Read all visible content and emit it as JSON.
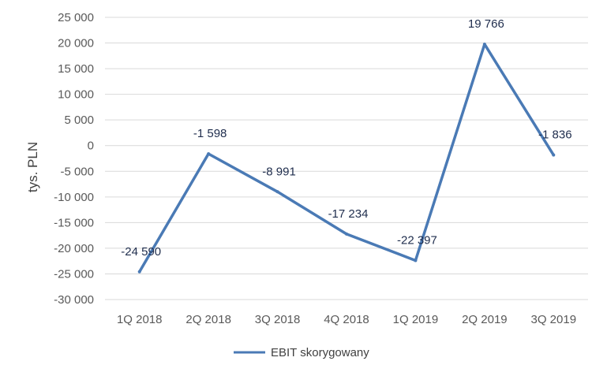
{
  "chart_data": {
    "type": "line",
    "categories": [
      "1Q 2018",
      "2Q 2018",
      "3Q 2018",
      "4Q 2018",
      "1Q 2019",
      "2Q 2019",
      "3Q 2019"
    ],
    "series": [
      {
        "name": "EBIT skorygowany",
        "values": [
          -24590,
          -1598,
          -8991,
          -17234,
          -22397,
          19766,
          -1836
        ],
        "labels": [
          "-24 590",
          "-1 598",
          "-8 991",
          "-17 234",
          "-22 397",
          "19 766",
          "-1 836"
        ],
        "color": "#4a7ab5"
      }
    ],
    "ylabel": "tys. PLN",
    "xlabel": "",
    "ylim": [
      -30000,
      25000
    ],
    "yticks": [
      25000,
      20000,
      15000,
      10000,
      5000,
      0,
      -5000,
      -10000,
      -15000,
      -20000,
      -25000,
      -30000
    ],
    "ytick_labels": [
      "25 000",
      "20 000",
      "15 000",
      "10 000",
      "5 000",
      "0",
      "-5 000",
      "-10 000",
      "-15 000",
      "-20 000",
      "-25 000",
      "-30 000"
    ],
    "grid": true,
    "gridColor": "#d9d9d9",
    "legend": "bottom"
  }
}
